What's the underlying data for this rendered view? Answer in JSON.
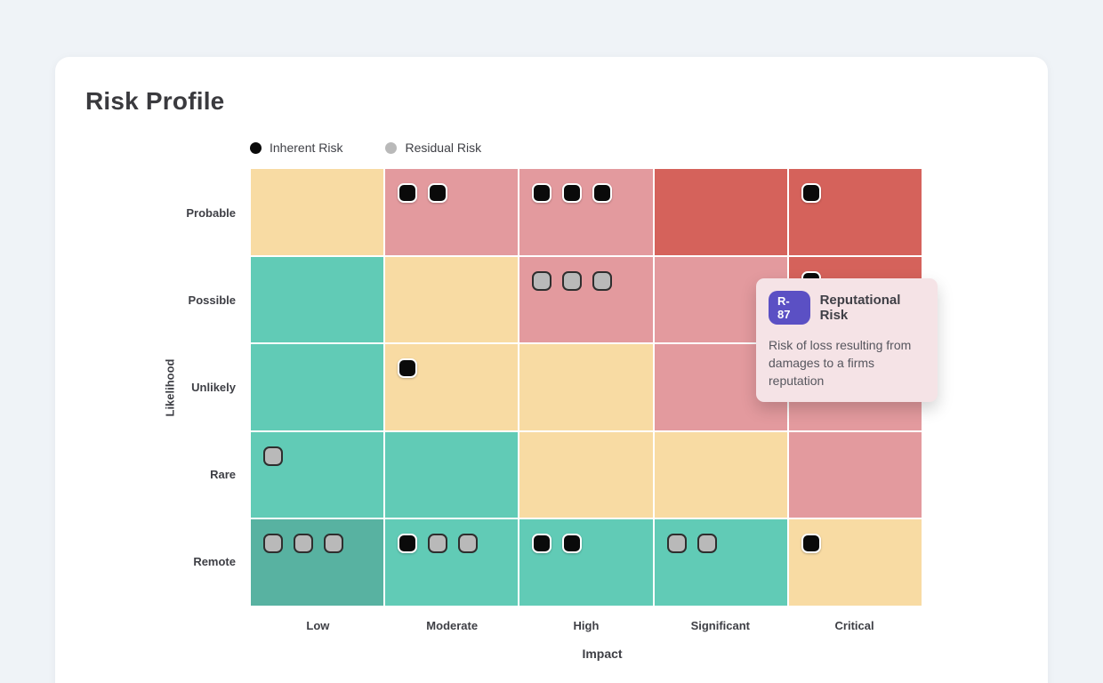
{
  "title": "Risk Profile",
  "legend": {
    "items": [
      {
        "name": "inherent",
        "label": "Inherent Risk",
        "color": "#0a0a0a"
      },
      {
        "name": "residual",
        "label": "Residual Risk",
        "color": "#b9b9b9"
      }
    ]
  },
  "palette": {
    "page_bg": "#eff3f7",
    "card_bg": "#ffffff",
    "teal": "#61cbb6",
    "teal_dark": "#58b2a1",
    "yellow": "#f8dba3",
    "pink": "#e39a9e",
    "red": "#d5625b",
    "marker_inherent": "#0a0a0a",
    "marker_residual": "#b9b9b9",
    "tooltip_bg": "#f5e3e6",
    "badge_bg": "#5b50c4"
  },
  "chart_data": {
    "type": "heatmap",
    "title": "Risk Profile",
    "xlabel": "Impact",
    "ylabel": "Likelihood",
    "x_categories": [
      "Low",
      "Moderate",
      "High",
      "Significant",
      "Critical"
    ],
    "y_categories": [
      "Probable",
      "Possible",
      "Unlikely",
      "Rare",
      "Remote"
    ],
    "legend_entries": [
      "Inherent Risk",
      "Residual Risk"
    ],
    "rows": [
      {
        "likelihood": "Probable",
        "cells": [
          {
            "impact": "Low",
            "color": "yellow",
            "markers": []
          },
          {
            "impact": "Moderate",
            "color": "pink",
            "markers": [
              "inherent",
              "inherent"
            ]
          },
          {
            "impact": "High",
            "color": "pink",
            "markers": [
              "inherent",
              "inherent",
              "inherent"
            ]
          },
          {
            "impact": "Significant",
            "color": "red",
            "markers": []
          },
          {
            "impact": "Critical",
            "color": "red",
            "markers": [
              "inherent"
            ]
          }
        ]
      },
      {
        "likelihood": "Possible",
        "cells": [
          {
            "impact": "Low",
            "color": "teal",
            "markers": []
          },
          {
            "impact": "Moderate",
            "color": "yellow",
            "markers": []
          },
          {
            "impact": "High",
            "color": "pink",
            "markers": [
              "residual",
              "residual",
              "residual"
            ]
          },
          {
            "impact": "Significant",
            "color": "pink",
            "markers": []
          },
          {
            "impact": "Critical",
            "color": "red",
            "markers": [
              "inherent"
            ]
          }
        ]
      },
      {
        "likelihood": "Unlikely",
        "cells": [
          {
            "impact": "Low",
            "color": "teal",
            "markers": []
          },
          {
            "impact": "Moderate",
            "color": "yellow",
            "markers": [
              "inherent"
            ]
          },
          {
            "impact": "High",
            "color": "yellow",
            "markers": []
          },
          {
            "impact": "Significant",
            "color": "pink",
            "markers": []
          },
          {
            "impact": "Critical",
            "color": "pink",
            "markers": []
          }
        ]
      },
      {
        "likelihood": "Rare",
        "cells": [
          {
            "impact": "Low",
            "color": "teal",
            "markers": [
              "residual"
            ]
          },
          {
            "impact": "Moderate",
            "color": "teal",
            "markers": []
          },
          {
            "impact": "High",
            "color": "yellow",
            "markers": []
          },
          {
            "impact": "Significant",
            "color": "yellow",
            "markers": []
          },
          {
            "impact": "Critical",
            "color": "pink",
            "markers": []
          }
        ]
      },
      {
        "likelihood": "Remote",
        "cells": [
          {
            "impact": "Low",
            "color": "teal_dark",
            "markers": [
              "residual",
              "residual",
              "residual"
            ]
          },
          {
            "impact": "Moderate",
            "color": "teal",
            "markers": [
              "inherent",
              "residual",
              "residual"
            ]
          },
          {
            "impact": "High",
            "color": "teal",
            "markers": [
              "inherent",
              "inherent"
            ]
          },
          {
            "impact": "Significant",
            "color": "teal",
            "markers": [
              "residual",
              "residual"
            ]
          },
          {
            "impact": "Critical",
            "color": "yellow",
            "markers": [
              "inherent"
            ]
          }
        ]
      }
    ]
  },
  "tooltip": {
    "badge": "R-87",
    "title": "Reputational Risk",
    "description": "Risk of loss resulting from damages to a firms reputation"
  }
}
